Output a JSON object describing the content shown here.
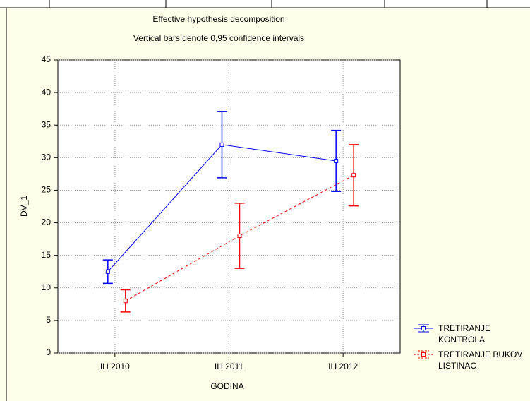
{
  "chart_data": {
    "type": "line",
    "title": "Effective hypothesis decomposition",
    "subtitle": "Vertical bars denote 0,95 confidence intervals",
    "x_label": "GODINA",
    "y_label": "DV_1",
    "categories": [
      "IH 2010",
      "IH 2011",
      "IH 2012"
    ],
    "series": [
      {
        "name": "TRETIRANJE KONTROLA",
        "color": "#0000ff",
        "dashed": false,
        "values": [
          12.5,
          32,
          29.5
        ],
        "errors": [
          1.8,
          5.1,
          4.7
        ]
      },
      {
        "name": "TRETIRANJE BUKOV LISTINAC",
        "color": "#ff0000",
        "dashed": true,
        "values": [
          8,
          18,
          27.3
        ],
        "errors": [
          1.7,
          5,
          4.7
        ]
      }
    ],
    "ylim": [
      0,
      45
    ],
    "yticks": [
      0,
      5,
      10,
      15,
      20,
      25,
      30,
      35,
      40,
      45
    ],
    "grid": true
  }
}
